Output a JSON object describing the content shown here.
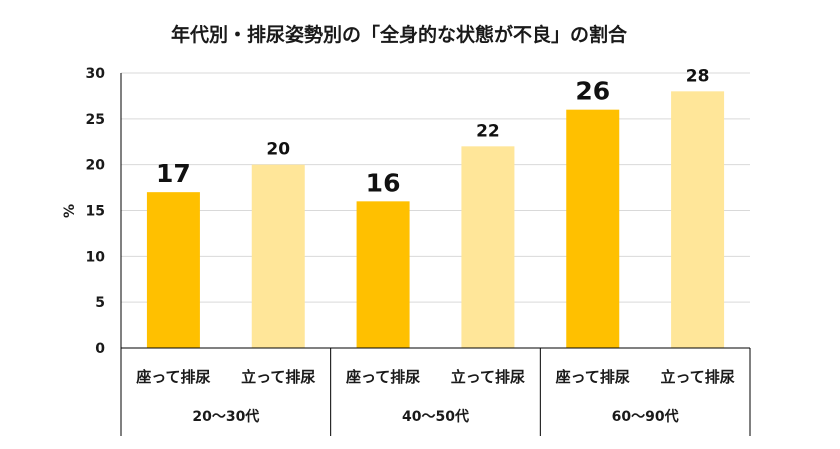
{
  "chart_data": {
    "type": "bar",
    "title": "年代別・排尿姿勢別の「全身的な状態が不良」の割合",
    "ylabel": "%",
    "ylim": [
      0,
      30
    ],
    "yticks": [
      0,
      5,
      10,
      15,
      20,
      25,
      30
    ],
    "grid": true,
    "legend": "none",
    "groups": [
      "20〜30代",
      "40〜50代",
      "60〜90代"
    ],
    "categories": [
      "座って排尿",
      "立って排尿",
      "座って排尿",
      "立って排尿",
      "座って排尿",
      "立って排尿"
    ],
    "values": [
      17,
      20,
      16,
      22,
      26,
      28
    ],
    "data_labels": [
      "17",
      "20",
      "16",
      "22",
      "26",
      "28"
    ],
    "value_label_emphasis": [
      "large",
      "normal",
      "large",
      "normal",
      "large",
      "normal"
    ],
    "colors": {
      "sitting": "#FFC000",
      "standing": "#FFE699",
      "grid": "#d9d9d9",
      "axis": "#000000"
    }
  }
}
